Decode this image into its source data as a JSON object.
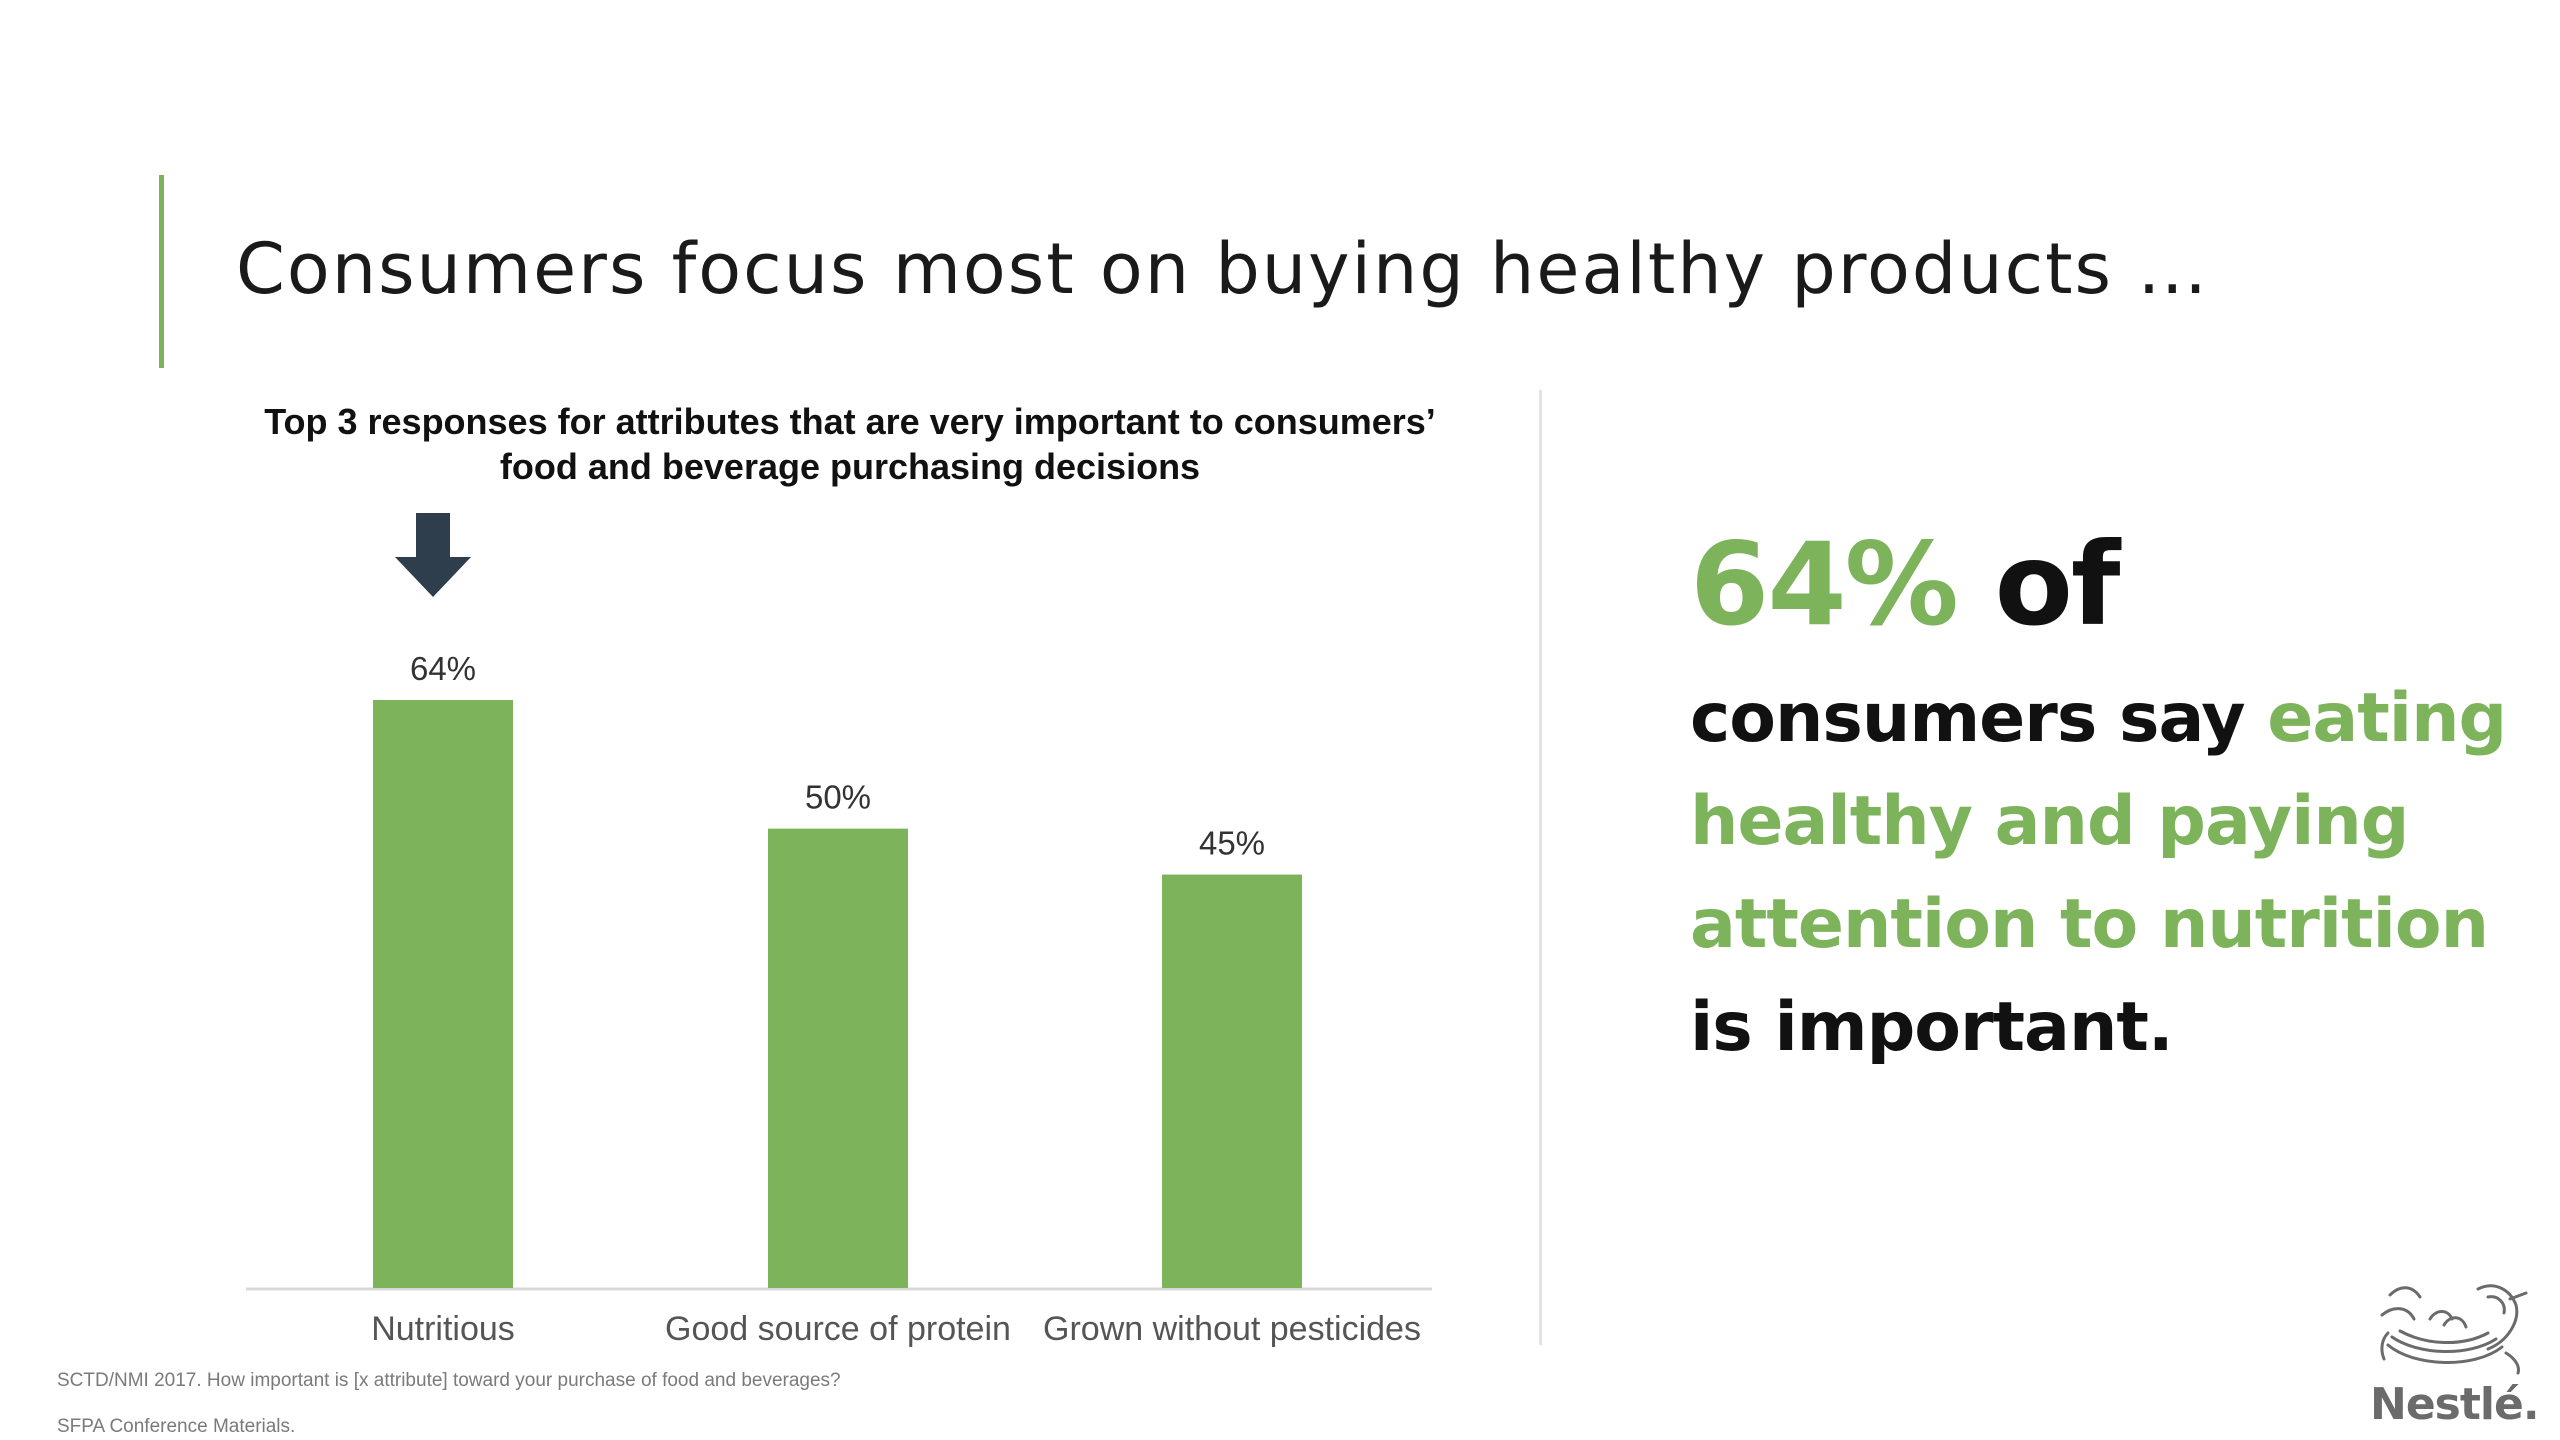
{
  "slide": {
    "title": "Consumers focus most on buying healthy products …"
  },
  "chart_data": {
    "type": "bar",
    "title_line1": "Top 3 responses for attributes that are very important to consumers’",
    "title_line2": "food and beverage purchasing decisions",
    "categories": [
      "Nutritious",
      "Good source of protein",
      "Grown without pesticides"
    ],
    "values": [
      64,
      50,
      45
    ],
    "value_labels": [
      "64%",
      "50%",
      "45%"
    ],
    "highlight_category": "Nutritious",
    "ylim": [
      0,
      64
    ],
    "grid": false,
    "legend": "none",
    "bar_color": "#7db35a"
  },
  "callout": {
    "percent": "64%",
    "of": " of",
    "line1_dark": "consumers say ",
    "line1_green": "eating",
    "line2_green": "healthy and paying",
    "line3_green": "attention to nutrition",
    "line4_dark": "is important."
  },
  "source": {
    "note": "SCTD/NMI 2017. How important is [x attribute] toward your purchase of food and beverages?",
    "materials": "SFPA Conference Materials."
  },
  "logo": {
    "wordmark": "Nestlé.",
    "icon": "nest-birds-icon"
  },
  "colors": {
    "accent": "#7db35a",
    "text": "#111111",
    "arrow": "#2f3e4d"
  }
}
